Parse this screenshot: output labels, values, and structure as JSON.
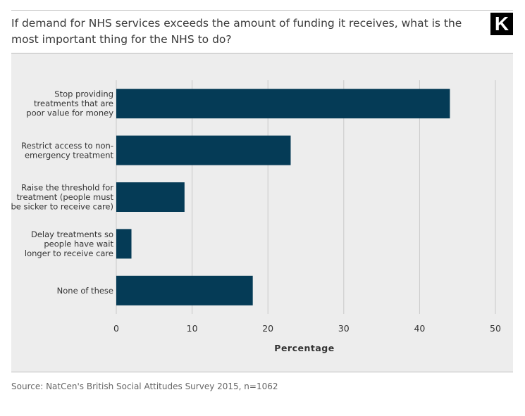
{
  "header": {
    "title": "If demand for NHS services exceeds the amount of funding it receives, what is the most important thing for the NHS to do?",
    "logo_text": "K"
  },
  "chart_data": {
    "type": "bar",
    "orientation": "horizontal",
    "categories": [
      [
        "Stop providing",
        "treatments that are",
        "poor value for money"
      ],
      [
        "Restrict access to non-",
        "emergency treatment"
      ],
      [
        "Raise the threshold for",
        "treatment (people must",
        "be sicker to receive care)"
      ],
      [
        "Delay treatments so",
        "people have wait",
        "longer to receive care"
      ],
      [
        "None of these"
      ]
    ],
    "values": [
      44,
      23,
      9,
      2,
      18
    ],
    "xlabel": "Percentage",
    "xlim": [
      0,
      50
    ],
    "xticks": [
      0,
      10,
      20,
      30,
      40,
      50
    ],
    "grid": true,
    "bar_color": "#053b56"
  },
  "footer": {
    "source": "Source: NatCen's British Social Attitudes Survey 2015, n=1062"
  }
}
